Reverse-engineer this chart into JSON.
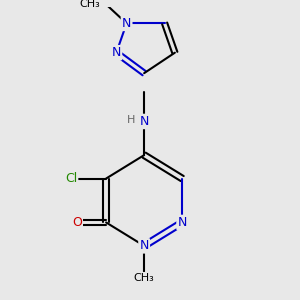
{
  "background_color": "#e8e8e8",
  "bond_color": "#000000",
  "bond_lw": 1.5,
  "atom_colors": {
    "N": "#0000cc",
    "O": "#cc0000",
    "Cl": "#228800",
    "C": "#000000",
    "H": "#666666"
  },
  "font_size": 9,
  "font_size_small": 8
}
